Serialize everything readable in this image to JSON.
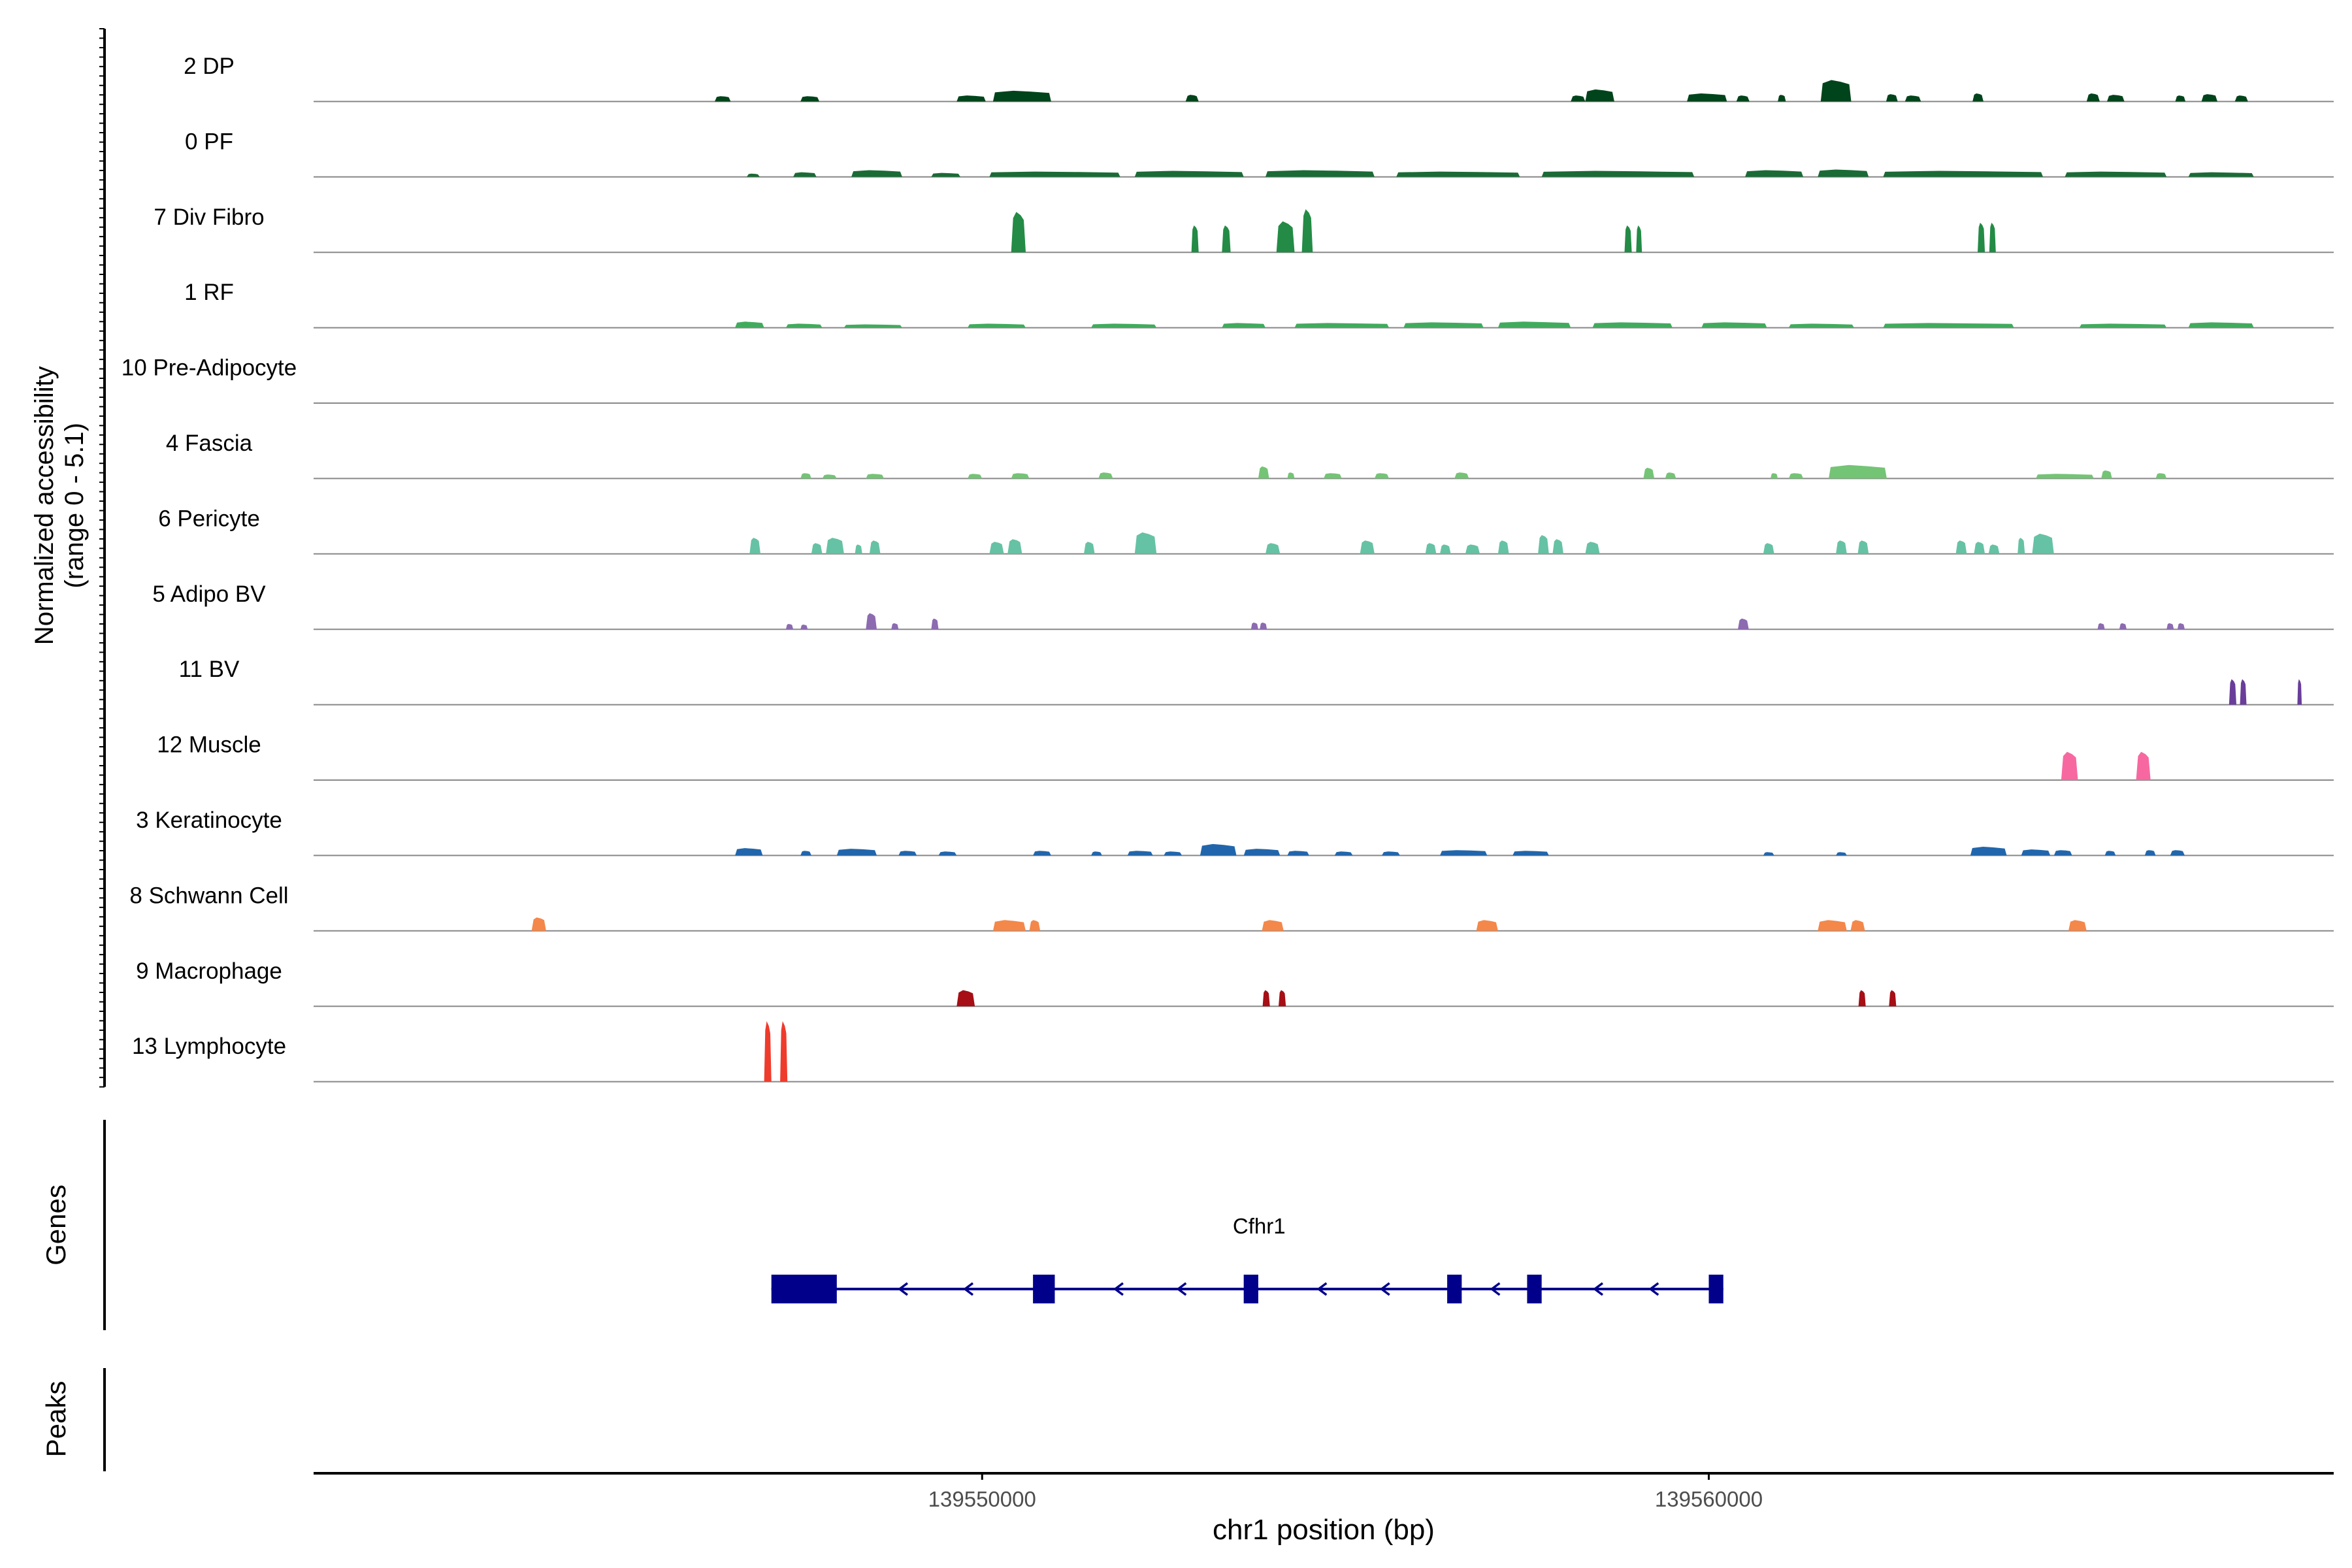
{
  "chart_data": {
    "type": "area",
    "title": "",
    "genomic_region": {
      "chromosome": "chr1",
      "start": 139540800,
      "end": 139568600
    },
    "xlabel": "chr1 position (bp)",
    "x_ticks": [
      139550000,
      139560000
    ],
    "x_tick_labels": [
      "139550000",
      "139560000"
    ],
    "coverage_ylabel": "Normalized accessibility\n(range 0 - 5.1)",
    "y_range": [
      0,
      5.1
    ],
    "tracks": [
      {
        "name": "2 DP",
        "color": "#00441B",
        "peaks": [
          [
            139546320,
            139546540,
            0.4
          ],
          [
            139547500,
            139547760,
            0.4
          ],
          [
            139549650,
            139550050,
            0.45
          ],
          [
            139550150,
            139550950,
            0.8
          ],
          [
            139552800,
            139552980,
            0.5
          ],
          [
            139558100,
            139558300,
            0.45
          ],
          [
            139558300,
            139558700,
            0.9
          ],
          [
            139559700,
            139560250,
            0.6
          ],
          [
            139560380,
            139560560,
            0.45
          ],
          [
            139560950,
            139561060,
            0.5
          ],
          [
            139561540,
            139561960,
            1.6
          ],
          [
            139562440,
            139562600,
            0.55
          ],
          [
            139562700,
            139562920,
            0.45
          ],
          [
            139563630,
            139563780,
            0.6
          ],
          [
            139565200,
            139565380,
            0.6
          ],
          [
            139565480,
            139565720,
            0.5
          ],
          [
            139566420,
            139566560,
            0.45
          ],
          [
            139566780,
            139567000,
            0.55
          ],
          [
            139567240,
            139567420,
            0.45
          ]
        ]
      },
      {
        "name": "0 PF",
        "color": "#1A6B35",
        "peaks": [
          [
            139546760,
            139546940,
            0.25
          ],
          [
            139547400,
            139547720,
            0.35
          ],
          [
            139548200,
            139548900,
            0.5
          ],
          [
            139549300,
            139549700,
            0.3
          ],
          [
            139550100,
            139551900,
            0.4
          ],
          [
            139552100,
            139553600,
            0.45
          ],
          [
            139553900,
            139555400,
            0.5
          ],
          [
            139555700,
            139557400,
            0.4
          ],
          [
            139557700,
            139559800,
            0.45
          ],
          [
            139560500,
            139561300,
            0.5
          ],
          [
            139561500,
            139562200,
            0.55
          ],
          [
            139562400,
            139564600,
            0.45
          ],
          [
            139564900,
            139566300,
            0.4
          ],
          [
            139566600,
            139567500,
            0.35
          ]
        ]
      },
      {
        "name": "7 Div Fibro",
        "color": "#238B45",
        "peaks": [
          [
            139550400,
            139550600,
            3.0
          ],
          [
            139552880,
            139552980,
            2.0
          ],
          [
            139553300,
            139553420,
            2.0
          ],
          [
            139554050,
            139554300,
            2.3
          ],
          [
            139554400,
            139554550,
            3.2
          ],
          [
            139558840,
            139558940,
            2.0
          ],
          [
            139559000,
            139559080,
            2.0
          ],
          [
            139563700,
            139563800,
            2.2
          ],
          [
            139563860,
            139563950,
            2.2
          ]
        ]
      },
      {
        "name": "1 RF",
        "color": "#41AB5D",
        "peaks": [
          [
            139546600,
            139547000,
            0.45
          ],
          [
            139547300,
            139547800,
            0.3
          ],
          [
            139548100,
            139548900,
            0.25
          ],
          [
            139549800,
            139550600,
            0.3
          ],
          [
            139551500,
            139552400,
            0.3
          ],
          [
            139553300,
            139553900,
            0.35
          ],
          [
            139554300,
            139555600,
            0.35
          ],
          [
            139555800,
            139556900,
            0.4
          ],
          [
            139557100,
            139558100,
            0.45
          ],
          [
            139558400,
            139559500,
            0.4
          ],
          [
            139559900,
            139560800,
            0.4
          ],
          [
            139561100,
            139562000,
            0.3
          ],
          [
            139562400,
            139564200,
            0.35
          ],
          [
            139565100,
            139566300,
            0.3
          ],
          [
            139566600,
            139567500,
            0.4
          ]
        ]
      },
      {
        "name": "10 Pre-Adipocyte",
        "color": "#74C476",
        "peaks": []
      },
      {
        "name": "4 Fascia",
        "color": "#74C476",
        "peaks": [
          [
            139547500,
            139547650,
            0.4
          ],
          [
            139547800,
            139548000,
            0.3
          ],
          [
            139548400,
            139548650,
            0.35
          ],
          [
            139549800,
            139550000,
            0.35
          ],
          [
            139550400,
            139550650,
            0.4
          ],
          [
            139551600,
            139551800,
            0.45
          ],
          [
            139553800,
            139553950,
            0.9
          ],
          [
            139554200,
            139554300,
            0.45
          ],
          [
            139554700,
            139554950,
            0.4
          ],
          [
            139555400,
            139555600,
            0.4
          ],
          [
            139556500,
            139556700,
            0.45
          ],
          [
            139559100,
            139559250,
            0.8
          ],
          [
            139559400,
            139559550,
            0.45
          ],
          [
            139560850,
            139560950,
            0.4
          ],
          [
            139561100,
            139561300,
            0.4
          ],
          [
            139561650,
            139562450,
            1.0
          ],
          [
            139564500,
            139565300,
            0.35
          ],
          [
            139565400,
            139565550,
            0.6
          ],
          [
            139566150,
            139566300,
            0.4
          ]
        ]
      },
      {
        "name": "6 Pericyte",
        "color": "#66C2A4",
        "peaks": [
          [
            139546800,
            139546950,
            1.2
          ],
          [
            139547650,
            139547800,
            0.8
          ],
          [
            139547850,
            139548100,
            1.2
          ],
          [
            139548250,
            139548350,
            0.7
          ],
          [
            139548450,
            139548600,
            1.0
          ],
          [
            139550100,
            139550300,
            0.9
          ],
          [
            139550350,
            139550550,
            1.1
          ],
          [
            139551400,
            139551550,
            0.9
          ],
          [
            139552100,
            139552400,
            1.6
          ],
          [
            139553900,
            139554100,
            0.8
          ],
          [
            139555200,
            139555400,
            1.0
          ],
          [
            139556100,
            139556250,
            0.8
          ],
          [
            139556300,
            139556450,
            0.7
          ],
          [
            139556650,
            139556850,
            0.7
          ],
          [
            139557100,
            139557250,
            1.0
          ],
          [
            139557650,
            139557800,
            1.4
          ],
          [
            139557850,
            139558000,
            1.1
          ],
          [
            139558300,
            139558500,
            0.9
          ],
          [
            139560750,
            139560900,
            0.8
          ],
          [
            139561750,
            139561900,
            1.0
          ],
          [
            139562050,
            139562200,
            1.0
          ],
          [
            139563400,
            139563550,
            1.0
          ],
          [
            139563650,
            139563800,
            0.9
          ],
          [
            139563850,
            139564000,
            0.7
          ],
          [
            139564250,
            139564350,
            1.2
          ],
          [
            139564450,
            139564750,
            1.5
          ]
        ]
      },
      {
        "name": "5 Adipo BV",
        "color": "#8C6BB1",
        "peaks": [
          [
            139547300,
            139547400,
            0.4
          ],
          [
            139547500,
            139547600,
            0.35
          ],
          [
            139548400,
            139548550,
            1.2
          ],
          [
            139548750,
            139548850,
            0.45
          ],
          [
            139549300,
            139549400,
            0.8
          ],
          [
            139553700,
            139553800,
            0.5
          ],
          [
            139553820,
            139553920,
            0.5
          ],
          [
            139560400,
            139560550,
            0.8
          ],
          [
            139565350,
            139565450,
            0.45
          ],
          [
            139565650,
            139565750,
            0.45
          ],
          [
            139566300,
            139566400,
            0.45
          ],
          [
            139566450,
            139566550,
            0.45
          ]
        ]
      },
      {
        "name": "11 BV",
        "color": "#6A3D9A",
        "peaks": [
          [
            139567160,
            139567260,
            1.9
          ],
          [
            139567310,
            139567400,
            1.9
          ],
          [
            139568100,
            139568160,
            1.9
          ]
        ]
      },
      {
        "name": "12 Muscle",
        "color": "#F768A1",
        "peaks": [
          [
            139564850,
            139565080,
            2.1
          ],
          [
            139565880,
            139566080,
            2.1
          ]
        ]
      },
      {
        "name": "3 Keratinocyte",
        "color": "#2166AC",
        "peaks": [
          [
            139546600,
            139546980,
            0.55
          ],
          [
            139547500,
            139547650,
            0.35
          ],
          [
            139548000,
            139548550,
            0.5
          ],
          [
            139548850,
            139549100,
            0.35
          ],
          [
            139549400,
            139549650,
            0.3
          ],
          [
            139550700,
            139550950,
            0.35
          ],
          [
            139551500,
            139551650,
            0.3
          ],
          [
            139552000,
            139552350,
            0.35
          ],
          [
            139552500,
            139552750,
            0.3
          ],
          [
            139553000,
            139553500,
            0.85
          ],
          [
            139553600,
            139554100,
            0.5
          ],
          [
            139554200,
            139554500,
            0.35
          ],
          [
            139554850,
            139555100,
            0.3
          ],
          [
            139555500,
            139555750,
            0.3
          ],
          [
            139556300,
            139556950,
            0.4
          ],
          [
            139557300,
            139557800,
            0.35
          ],
          [
            139560750,
            139560900,
            0.25
          ],
          [
            139561750,
            139561900,
            0.25
          ],
          [
            139563600,
            139564100,
            0.65
          ],
          [
            139564300,
            139564700,
            0.45
          ],
          [
            139564750,
            139565000,
            0.4
          ],
          [
            139565450,
            139565600,
            0.35
          ],
          [
            139566000,
            139566150,
            0.4
          ],
          [
            139566350,
            139566550,
            0.4
          ]
        ]
      },
      {
        "name": "8 Schwann Cell",
        "color": "#F4874A",
        "peaks": [
          [
            139543800,
            139544000,
            1.0
          ],
          [
            139550150,
            139550600,
            0.8
          ],
          [
            139550650,
            139550800,
            0.8
          ],
          [
            139553850,
            139554150,
            0.8
          ],
          [
            139556800,
            139557100,
            0.8
          ],
          [
            139561500,
            139561900,
            0.8
          ],
          [
            139561950,
            139562150,
            0.8
          ],
          [
            139564950,
            139565200,
            0.8
          ]
        ]
      },
      {
        "name": "9 Macrophage",
        "color": "#A50F15",
        "peaks": [
          [
            139549650,
            139549900,
            1.2
          ],
          [
            139553860,
            139553960,
            1.2
          ],
          [
            139554080,
            139554180,
            1.2
          ],
          [
            139562060,
            139562160,
            1.2
          ],
          [
            139562480,
            139562580,
            1.2
          ]
        ]
      },
      {
        "name": "13 Lymphocyte",
        "color": "#EF3B2C",
        "peaks": [
          [
            139547000,
            139547100,
            4.5
          ],
          [
            139547220,
            139547320,
            4.5
          ]
        ]
      }
    ],
    "gene_track": {
      "label": "Genes",
      "gene_name": "Cfhr1",
      "color": "#00008B",
      "start": 139547100,
      "end": 139560200,
      "strand": "-",
      "exons": [
        [
          139547100,
          139548000
        ],
        [
          139550700,
          139551000
        ],
        [
          139553600,
          139553800
        ],
        [
          139556400,
          139556600
        ],
        [
          139557500,
          139557700
        ],
        [
          139560000,
          139560200
        ]
      ]
    },
    "peaks_track": {
      "label": "Peaks",
      "peaks": []
    }
  }
}
